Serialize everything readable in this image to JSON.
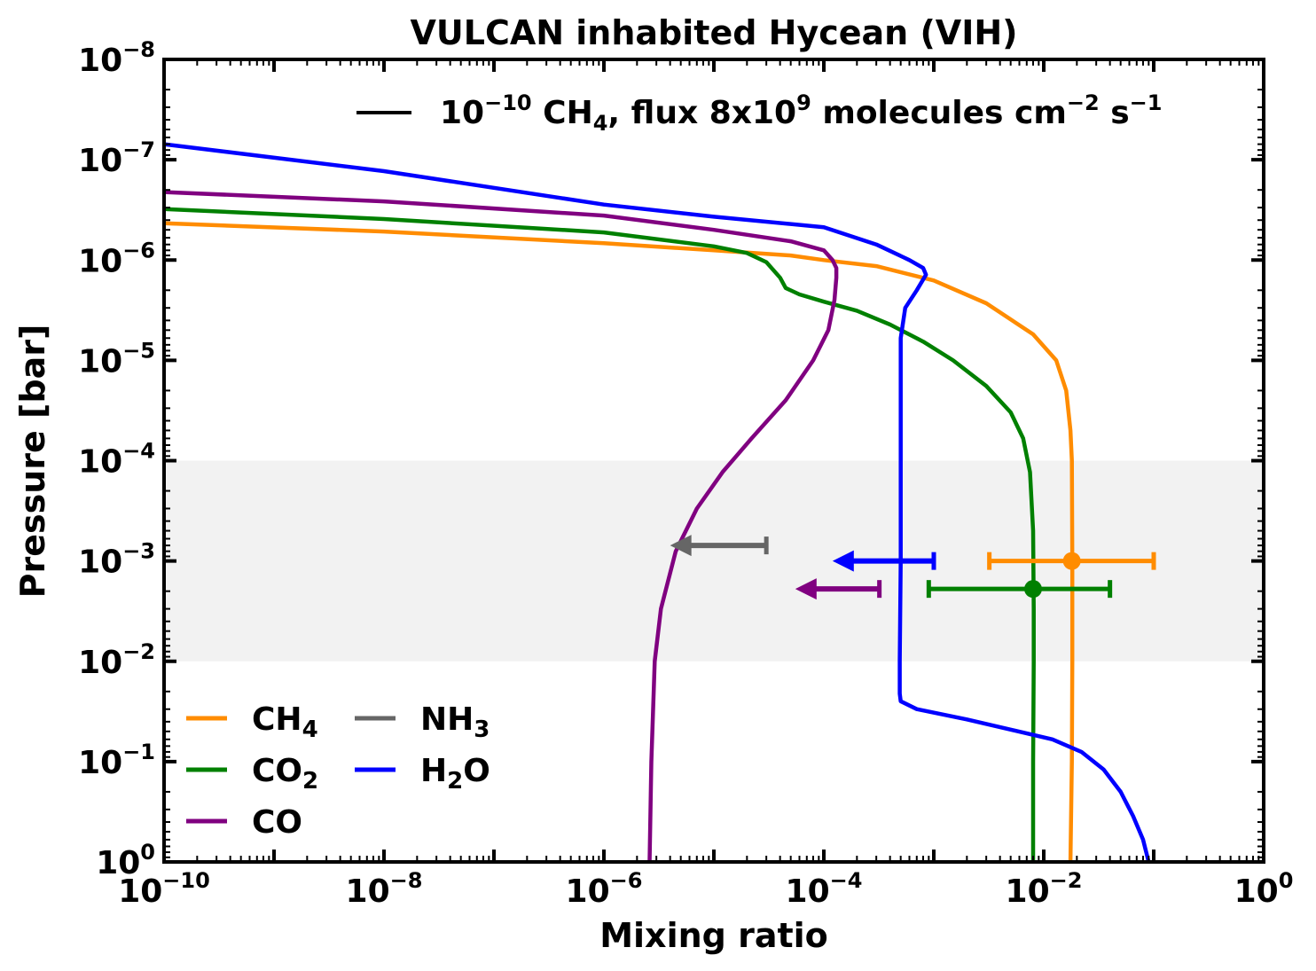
{
  "chart_data": {
    "type": "line",
    "title": "VULCAN inhabited Hycean (VIH)",
    "xlabel": "Mixing ratio",
    "ylabel": "Pressure [bar]",
    "xscale": "log",
    "yscale": "log",
    "xlim": [
      1e-10,
      1
    ],
    "ylim": [
      1,
      1e-08
    ],
    "y_inverted": true,
    "x_ticks": [
      {
        "base": "10",
        "exp": "−10",
        "value_exp": -10
      },
      {
        "base": "10",
        "exp": "−8",
        "value_exp": -8
      },
      {
        "base": "10",
        "exp": "−6",
        "value_exp": -6
      },
      {
        "base": "10",
        "exp": "−4",
        "value_exp": -4
      },
      {
        "base": "10",
        "exp": "−2",
        "value_exp": -2
      },
      {
        "base": "10",
        "exp": "0",
        "value_exp": 0
      }
    ],
    "y_ticks": [
      {
        "base": "10",
        "exp": "−8",
        "value_exp": -8
      },
      {
        "base": "10",
        "exp": "−7",
        "value_exp": -7
      },
      {
        "base": "10",
        "exp": "−6",
        "value_exp": -6
      },
      {
        "base": "10",
        "exp": "−5",
        "value_exp": -5
      },
      {
        "base": "10",
        "exp": "−4",
        "value_exp": -4
      },
      {
        "base": "10",
        "exp": "−3",
        "value_exp": -3
      },
      {
        "base": "10",
        "exp": "−2",
        "value_exp": -2
      },
      {
        "base": "10",
        "exp": "−1",
        "value_exp": -1
      },
      {
        "base": "10",
        "exp": "0",
        "value_exp": 0
      }
    ],
    "shaded_region": {
      "y_from": 0.0001,
      "y_to": 0.01,
      "color": "#f2f2f2"
    },
    "annotation_legend": {
      "color": "#000000",
      "parts": [
        {
          "text": "10",
          "style": "normal"
        },
        {
          "text": "−10",
          "style": "sup"
        },
        {
          "text": " CH",
          "style": "normal"
        },
        {
          "text": "4",
          "style": "sub"
        },
        {
          "text": ", flux 8x10",
          "style": "normal"
        },
        {
          "text": "9",
          "style": "sup"
        },
        {
          "text": " molecules cm",
          "style": "normal"
        },
        {
          "text": "−2",
          "style": "sup"
        },
        {
          "text": " s",
          "style": "normal"
        },
        {
          "text": "−1",
          "style": "sup"
        }
      ]
    },
    "legend": [
      {
        "series": "CH4",
        "main": "CH",
        "sub": "4"
      },
      {
        "series": "CO2",
        "main": "CO",
        "sub": "2"
      },
      {
        "series": "CO",
        "main": "CO",
        "sub": ""
      },
      {
        "series": "NH3",
        "main": "NH",
        "sub": "3"
      },
      {
        "series": "H2O",
        "main": "H",
        "sub": "2",
        "tail": "O"
      }
    ],
    "series": [
      {
        "name": "CH4",
        "color": "#ff8c00",
        "points": [
          [
            1e-10,
            4.3e-07
          ],
          [
            1e-08,
            5.2e-07
          ],
          [
            1e-06,
            6.8e-07
          ],
          [
            1e-05,
            8e-07
          ],
          [
            5e-05,
            9e-07
          ],
          [
            0.0001,
            1e-06
          ],
          [
            0.0003,
            1.15e-06
          ],
          [
            0.001,
            1.6e-06
          ],
          [
            0.003,
            2.7e-06
          ],
          [
            0.008,
            5.5e-06
          ],
          [
            0.013,
            1e-05
          ],
          [
            0.016,
            2e-05
          ],
          [
            0.0175,
            5e-05
          ],
          [
            0.018,
            0.0001
          ],
          [
            0.0182,
            0.001
          ],
          [
            0.0182,
            0.01
          ],
          [
            0.018,
            0.1
          ],
          [
            0.0175,
            1
          ]
        ]
      },
      {
        "name": "CO2",
        "color": "#008000",
        "points": [
          [
            1e-10,
            3.1e-07
          ],
          [
            1e-08,
            3.9e-07
          ],
          [
            1e-06,
            5.3e-07
          ],
          [
            1e-05,
            7.3e-07
          ],
          [
            2e-05,
            8.5e-07
          ],
          [
            3e-05,
            1.05e-06
          ],
          [
            4e-05,
            1.5e-06
          ],
          [
            4.5e-05,
            1.9e-06
          ],
          [
            6e-05,
            2.2e-06
          ],
          [
            0.0001,
            2.6e-06
          ],
          [
            0.0002,
            3.2e-06
          ],
          [
            0.0004,
            4.4e-06
          ],
          [
            0.0008,
            6.5e-06
          ],
          [
            0.0015,
            1e-05
          ],
          [
            0.003,
            1.8e-05
          ],
          [
            0.005,
            3.3e-05
          ],
          [
            0.0065,
            6e-05
          ],
          [
            0.0075,
            0.00013
          ],
          [
            0.008,
            0.0005
          ],
          [
            0.0081,
            0.003
          ],
          [
            0.0081,
            0.01
          ],
          [
            0.008,
            0.1
          ],
          [
            0.008,
            1
          ]
        ]
      },
      {
        "name": "CO",
        "color": "#800080",
        "points": [
          [
            1e-10,
            2.1e-07
          ],
          [
            1e-08,
            2.6e-07
          ],
          [
            1e-06,
            3.6e-07
          ],
          [
            1e-05,
            5e-07
          ],
          [
            5e-05,
            6.5e-07
          ],
          [
            0.0001,
            8e-07
          ],
          [
            0.00012,
            1e-06
          ],
          [
            0.00013,
            1.2e-06
          ],
          [
            0.00013,
            1.5e-06
          ],
          [
            0.000125,
            2.5e-06
          ],
          [
            0.00011,
            5e-06
          ],
          [
            8e-05,
            1e-05
          ],
          [
            4.5e-05,
            2.5e-05
          ],
          [
            2.2e-05,
            6e-05
          ],
          [
            1.2e-05,
            0.00013
          ],
          [
            7e-06,
            0.0003
          ],
          [
            4.5e-06,
            0.0008
          ],
          [
            3.3e-06,
            0.003
          ],
          [
            2.9e-06,
            0.01
          ],
          [
            2.7e-06,
            0.1
          ],
          [
            2.6e-06,
            1
          ]
        ]
      },
      {
        "name": "H2O",
        "color": "#0000ff",
        "points": [
          [
            1e-10,
            7e-08
          ],
          [
            1e-08,
            1.3e-07
          ],
          [
            1e-06,
            2.8e-07
          ],
          [
            1e-05,
            3.7e-07
          ],
          [
            0.0001,
            4.7e-07
          ],
          [
            0.0003,
            7e-07
          ],
          [
            0.0006,
            1e-06
          ],
          [
            0.0008,
            1.2e-06
          ],
          [
            0.00085,
            1.4e-06
          ],
          [
            0.0007,
            2e-06
          ],
          [
            0.00055,
            3e-06
          ],
          [
            0.0005,
            6e-06
          ],
          [
            0.0005,
            0.0001
          ],
          [
            0.0005,
            0.001
          ],
          [
            0.00049,
            0.01
          ],
          [
            0.00049,
            0.021
          ],
          [
            0.0005,
            0.025
          ],
          [
            0.0007,
            0.03
          ],
          [
            0.002,
            0.038
          ],
          [
            0.005,
            0.048
          ],
          [
            0.012,
            0.06
          ],
          [
            0.022,
            0.08
          ],
          [
            0.035,
            0.12
          ],
          [
            0.05,
            0.2
          ],
          [
            0.065,
            0.35
          ],
          [
            0.08,
            0.6
          ],
          [
            0.09,
            1
          ]
        ]
      }
    ],
    "errorbars": [
      {
        "species": "CH4",
        "color": "#ff8c00",
        "y": 0.001,
        "xmin": 0.0032,
        "xmax": 0.1,
        "center": 0.018,
        "upper_limit": false
      },
      {
        "species": "CO2",
        "color": "#008000",
        "y": 0.0019,
        "xmin": 0.0009,
        "xmax": 0.04,
        "center": 0.008,
        "upper_limit": false
      },
      {
        "species": "NH3",
        "color": "#666666",
        "y": 0.0007,
        "xmin": 4e-06,
        "xmax": 3e-05,
        "upper_limit": true
      },
      {
        "species": "H2O",
        "color": "#0000ff",
        "y": 0.001,
        "xmin": 0.00012,
        "xmax": 0.001,
        "upper_limit": true
      },
      {
        "species": "CO",
        "color": "#800080",
        "y": 0.0019,
        "xmin": 5.5e-05,
        "xmax": 0.00032,
        "upper_limit": true
      }
    ]
  }
}
